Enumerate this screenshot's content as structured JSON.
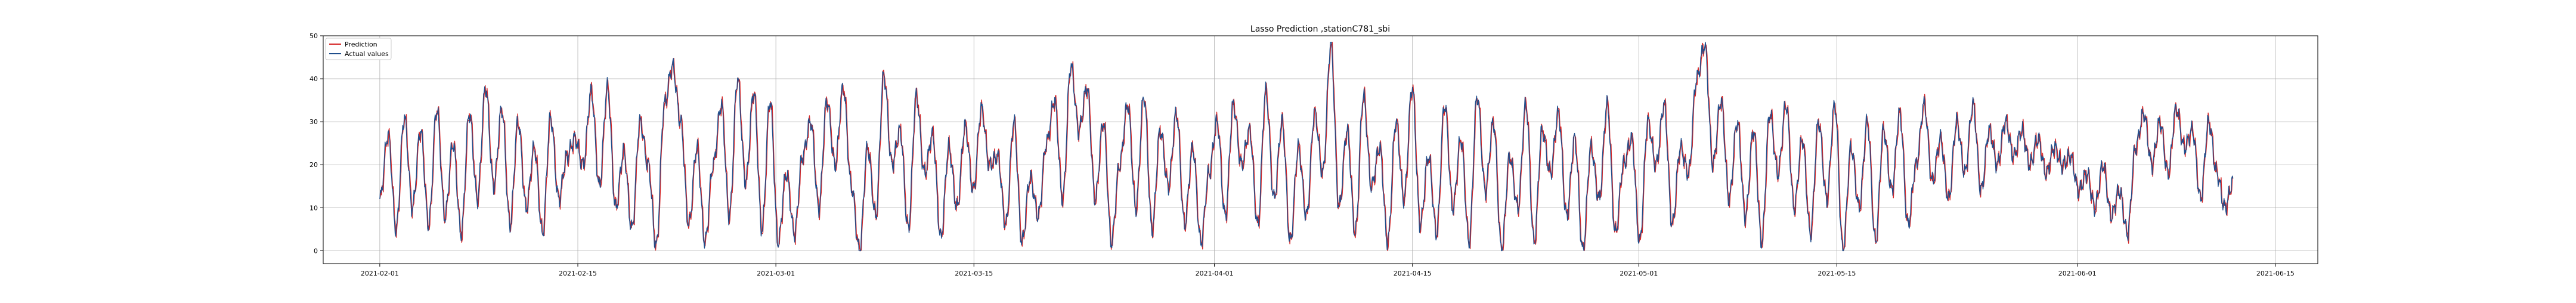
{
  "chart_data": {
    "type": "line",
    "title": "Lasso Prediction ,stationC781_sbi",
    "xlabel": "",
    "ylabel": "",
    "x_start": "2021-02-01",
    "x_end": "2021-06-11",
    "xlim": [
      "2021-01-28",
      "2021-06-18"
    ],
    "ylim": [
      -3,
      50
    ],
    "x_ticks": [
      {
        "date": "2021-02-01",
        "label": "2021-02-01"
      },
      {
        "date": "2021-02-15",
        "label": "2021-02-15"
      },
      {
        "date": "2021-03-01",
        "label": "2021-03-01"
      },
      {
        "date": "2021-03-15",
        "label": "2021-03-15"
      },
      {
        "date": "2021-04-01",
        "label": "2021-04-01"
      },
      {
        "date": "2021-04-15",
        "label": "2021-04-15"
      },
      {
        "date": "2021-05-01",
        "label": "2021-05-01"
      },
      {
        "date": "2021-05-15",
        "label": "2021-05-15"
      },
      {
        "date": "2021-06-01",
        "label": "2021-06-01"
      },
      {
        "date": "2021-06-15",
        "label": "2021-06-15"
      }
    ],
    "y_ticks": [
      0,
      10,
      20,
      30,
      40,
      50
    ],
    "grid": true,
    "legend_position": "top-left",
    "series": [
      {
        "name": "Prediction",
        "color": "#d62728"
      },
      {
        "name": "Actual values",
        "color": "#1f4e8c"
      }
    ],
    "actual_anchor_values": [
      12,
      27,
      5,
      31,
      10,
      28,
      6,
      33,
      8,
      25,
      4,
      32,
      12,
      38,
      15,
      33,
      6,
      30,
      10,
      24,
      4,
      31,
      12,
      22,
      26,
      20,
      37,
      15,
      38,
      10,
      23,
      5,
      30,
      20,
      1,
      34,
      43,
      30,
      6,
      24,
      2,
      20,
      34,
      8,
      40,
      16,
      37,
      5,
      35,
      2,
      18,
      4,
      22,
      30,
      10,
      35,
      20,
      38,
      15,
      0,
      24,
      8,
      41,
      20,
      28,
      5,
      36,
      18,
      27,
      3,
      24,
      10,
      29,
      14,
      33,
      20,
      22,
      6,
      30,
      2,
      17,
      8,
      25,
      35,
      12,
      43,
      28,
      38,
      12,
      30,
      2,
      20,
      34,
      10,
      36,
      5,
      28,
      15,
      32,
      6,
      24,
      2,
      18,
      30,
      8,
      34,
      20,
      28,
      6,
      37,
      12,
      30,
      2,
      24,
      8,
      32,
      18,
      48,
      10,
      28,
      4,
      36,
      15,
      24,
      2,
      30,
      12,
      38,
      6,
      22,
      4,
      34,
      10,
      26,
      2,
      36,
      14,
      30,
      0,
      22,
      10,
      34,
      2,
      28,
      18,
      32,
      8,
      26,
      0,
      24,
      12,
      34,
      4,
      20,
      26,
      2,
      30,
      20,
      34,
      6,
      24,
      18,
      40,
      48,
      20,
      35,
      12,
      30,
      8,
      28,
      2,
      32,
      18,
      34,
      10,
      26,
      4,
      30,
      12,
      34,
      0,
      24,
      10,
      30,
      2,
      28,
      14,
      32,
      6,
      20,
      34,
      16,
      26,
      12,
      30,
      18,
      34,
      14,
      28,
      20,
      30,
      22,
      28,
      20,
      26,
      18,
      24,
      20,
      22,
      14,
      18,
      10,
      20,
      8,
      14,
      4,
      24,
      32,
      20,
      30,
      18,
      33,
      24,
      28,
      12,
      30,
      18,
      10,
      16
    ]
  }
}
